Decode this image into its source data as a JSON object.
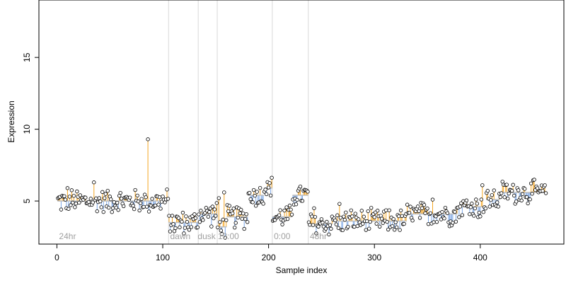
{
  "chart_data": {
    "type": "scatter",
    "xlabel": "Sample index",
    "ylabel": "Expression",
    "xlim": [
      -17,
      479
    ],
    "ylim": [
      2.0,
      19.0
    ],
    "x_ticks": [
      0,
      100,
      200,
      300,
      400
    ],
    "y_ticks": [
      5,
      10,
      15
    ],
    "segment_boundaries": [
      105,
      133,
      151,
      203,
      237
    ],
    "segment_labels": [
      {
        "x": 2,
        "text": "24hr"
      },
      {
        "x": 107,
        "text": "dawn"
      },
      {
        "x": 133,
        "text": "dusk"
      },
      {
        "x": 152,
        "text": "12:00"
      },
      {
        "x": 205,
        "text": "0:00"
      },
      {
        "x": 239,
        "text": "48hr"
      }
    ],
    "segments": [
      {
        "start": 1,
        "end": 105,
        "level": 5.0
      },
      {
        "start": 106,
        "end": 133,
        "level": 3.5
      },
      {
        "start": 134,
        "end": 151,
        "level": 4.1
      },
      {
        "start": 152,
        "end": 160,
        "level": 3.2
      },
      {
        "start": 161,
        "end": 180,
        "level": 3.9
      },
      {
        "start": 181,
        "end": 195,
        "level": 5.4
      },
      {
        "start": 196,
        "end": 203,
        "level": 5.9
      },
      {
        "start": 204,
        "end": 222,
        "level": 3.9
      },
      {
        "start": 223,
        "end": 237,
        "level": 5.4
      },
      {
        "start": 238,
        "end": 260,
        "level": 3.4
      },
      {
        "start": 261,
        "end": 330,
        "level": 3.6
      },
      {
        "start": 331,
        "end": 378,
        "level": 4.1
      },
      {
        "start": 379,
        "end": 405,
        "level": 4.6
      },
      {
        "start": 406,
        "end": 418,
        "level": 5.1
      },
      {
        "start": 419,
        "end": 462,
        "level": 5.6
      }
    ],
    "outliers": [
      {
        "x": 86,
        "y": 9.3
      },
      {
        "x": 35,
        "y": 6.3
      },
      {
        "x": 10,
        "y": 5.9
      },
      {
        "x": 158,
        "y": 5.6
      },
      {
        "x": 402,
        "y": 6.1
      },
      {
        "x": 153,
        "y": 5.2
      },
      {
        "x": 243,
        "y": 4.5
      },
      {
        "x": 267,
        "y": 4.8
      },
      {
        "x": 355,
        "y": 5.1
      }
    ],
    "colors": {
      "above": "#f5a623",
      "below": "#7aa6e6",
      "point_fill": "#ffffff",
      "point_stroke": "#000000",
      "grid": "#d9d9d9",
      "label": "#a0a0a0"
    }
  }
}
